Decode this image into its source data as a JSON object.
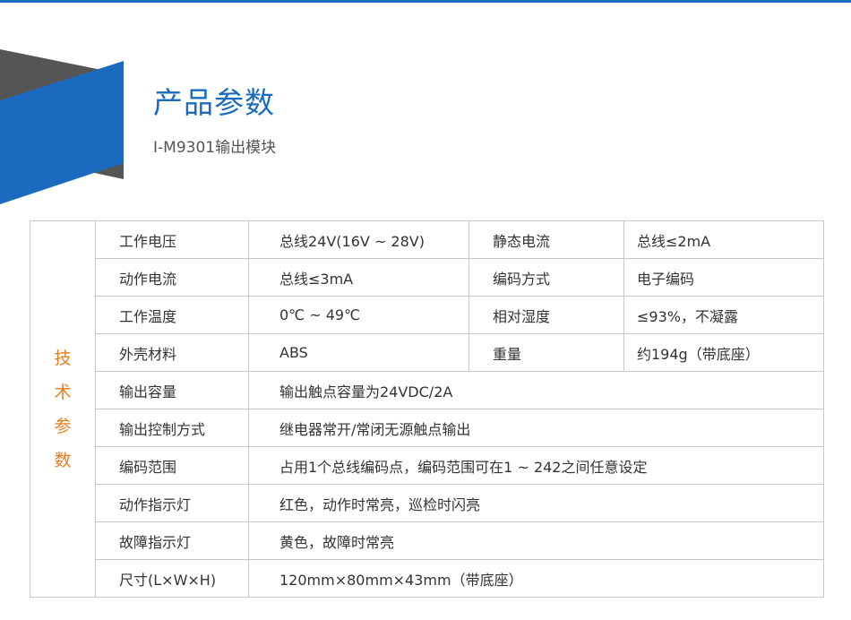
{
  "header": {
    "title": "产品参数",
    "subtitle": "I-M9301输出模块"
  },
  "colors": {
    "accent": "#1a6bbf",
    "dark_shape": "#555555",
    "label": "#e67e22"
  },
  "side_label": [
    "技",
    "术",
    "参",
    "数"
  ],
  "paired_rows": [
    {
      "k1": "工作电压",
      "v1": "总线24V(16V ~ 28V)",
      "k2": "静态电流",
      "v2": "总线≤2mA"
    },
    {
      "k1": "动作电流",
      "v1": "总线≤3mA",
      "k2": "编码方式",
      "v2": "电子编码"
    },
    {
      "k1": "工作温度",
      "v1": "0℃ ~  49℃",
      "k2": "相对湿度",
      "v2": "≤93%，不凝露"
    },
    {
      "k1": "外壳材料",
      "v1": "ABS",
      "k2": "重量",
      "v2": "约194g（带底座）"
    }
  ],
  "wide_rows": [
    {
      "k": "输出容量",
      "v": "输出触点容量为24VDC/2A"
    },
    {
      "k": "输出控制方式",
      "v": "继电器常开/常闭无源触点输出"
    },
    {
      "k": "编码范围",
      "v": "占用1个总线编码点，编码范围可在1 ~ 242之间任意设定"
    },
    {
      "k": "动作指示灯",
      "v": "红色，动作时常亮，巡检时闪亮"
    },
    {
      "k": "故障指示灯",
      "v": "黄色，故障时常亮"
    },
    {
      "k": "尺寸(L×W×H)",
      "v": "120mm×80mm×43mm（带底座）"
    }
  ]
}
